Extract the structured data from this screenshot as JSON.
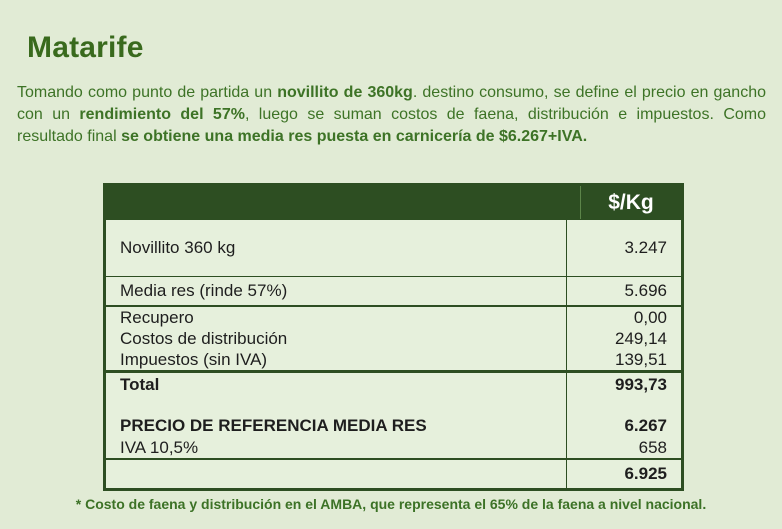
{
  "page": {
    "title": "Matarife",
    "footnote": "* Costo de faena y distribución en el AMBA, que representa el 65% de la faena a nivel nacional."
  },
  "intro": {
    "segments": [
      {
        "text": "Tomando como punto de partida un "
      },
      {
        "text": "novillito de 360kg"
      },
      {
        "text": ". destino consumo, se define el precio en gancho con un "
      },
      {
        "text": "rendimiento del 57%"
      },
      {
        "text": ", luego se suman costos de faena, distribución e impuestos. Como resultado final "
      },
      {
        "text": "se obtiene una media res puesta en carnicería de $6.267+IVA."
      }
    ]
  },
  "table": {
    "header": {
      "label": "",
      "value_col": "$/Kg"
    },
    "rows": [
      {
        "label": "Novillito 360 kg",
        "value": "3.247"
      },
      {
        "label": "Media res (rinde 57%)",
        "value": "5.696"
      },
      {
        "label": "Recupero",
        "value": "0,00"
      },
      {
        "label": "Costos de distribución",
        "value": "249,14"
      },
      {
        "label": "Impuestos (sin IVA)",
        "value": "139,51"
      },
      {
        "label": "Total",
        "value": "993,73"
      },
      {
        "label": "",
        "value": ""
      },
      {
        "label": "PRECIO DE REFERENCIA MEDIA RES",
        "value": "6.267"
      },
      {
        "label": "IVA 10,5%",
        "value": "658"
      },
      {
        "label": "",
        "value": "6.925"
      }
    ]
  },
  "colors": {
    "background": "#e1ebd5",
    "cell_background": "#e6f0dc",
    "dark_green": "#2d4e22",
    "text_green": "#3d7326",
    "title_green": "#396a1d",
    "table_text": "#1e1e1e",
    "header_text": "#ffffff"
  }
}
